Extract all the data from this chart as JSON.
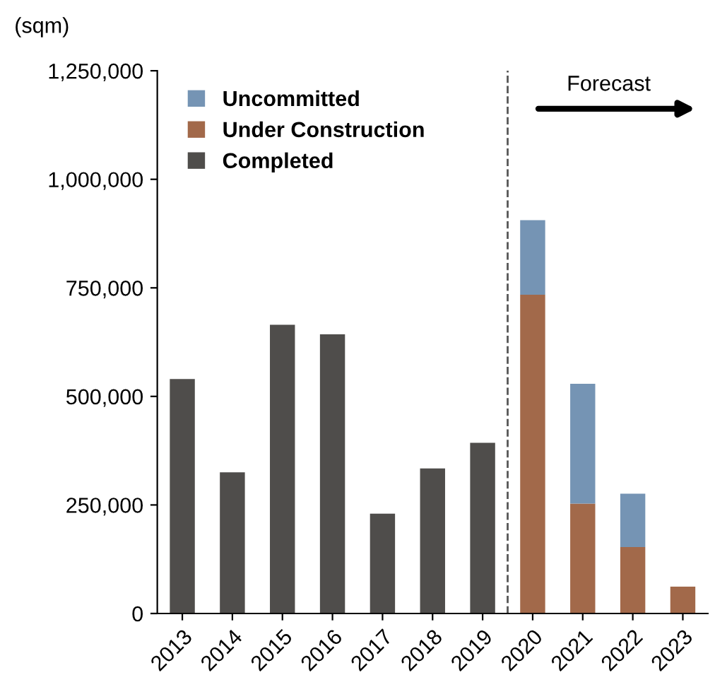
{
  "chart_data": {
    "type": "bar",
    "stacked": true,
    "ylabel": "(sqm)",
    "categories": [
      "2013",
      "2014",
      "2015",
      "2016",
      "2017",
      "2018",
      "2019",
      "2020",
      "2021",
      "2022",
      "2023"
    ],
    "series": [
      {
        "name": "Completed",
        "color": "#4f4d4b",
        "values": [
          540000,
          325000,
          665000,
          643000,
          230000,
          334000,
          393000,
          null,
          null,
          null,
          null
        ]
      },
      {
        "name": "Under Construction",
        "color": "#a2694a",
        "values": [
          null,
          null,
          null,
          null,
          null,
          null,
          null,
          734000,
          253000,
          153000,
          62000
        ]
      },
      {
        "name": "Uncommitted",
        "color": "#7594b4",
        "values": [
          null,
          null,
          null,
          null,
          null,
          null,
          null,
          172000,
          276000,
          123000,
          null
        ]
      }
    ],
    "ylim": [
      0,
      1250000
    ],
    "yticks": [
      {
        "value": 0,
        "label": "0"
      },
      {
        "value": 250000,
        "label": "250,000"
      },
      {
        "value": 500000,
        "label": "500,000"
      },
      {
        "value": 750000,
        "label": "750,000"
      },
      {
        "value": 1000000,
        "label": "1,000,000"
      },
      {
        "value": 1250000,
        "label": "1,250,000"
      }
    ],
    "annotations": [
      "Forecast"
    ],
    "legend": "top left",
    "grid": false
  }
}
